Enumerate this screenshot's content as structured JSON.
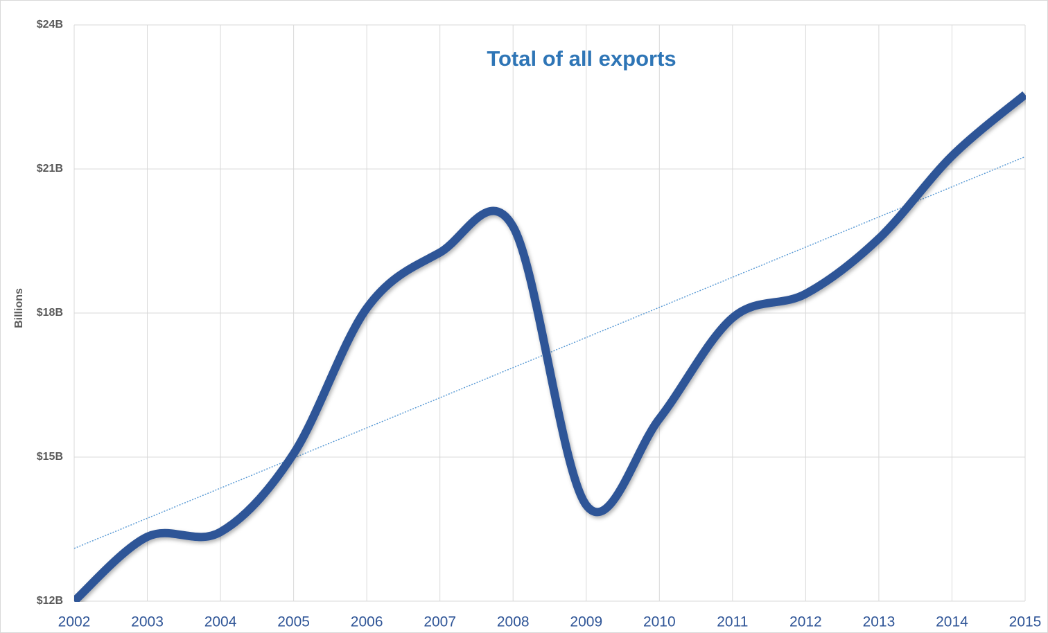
{
  "chart_data": {
    "type": "line",
    "title": "Total of all exports",
    "ylabel": "Billions",
    "x": [
      2002,
      2003,
      2004,
      2005,
      2006,
      2007,
      2008,
      2009,
      2010,
      2011,
      2012,
      2013,
      2014,
      2015
    ],
    "values": [
      12.0,
      13.34,
      13.44,
      15.07,
      18.1,
      19.26,
      19.8,
      14.0,
      15.8,
      17.9,
      18.4,
      19.55,
      21.27,
      22.55
    ],
    "color": "#2f5597",
    "trendline": true,
    "trendline_color": "#5b9bd5",
    "xlim": [
      2002,
      2015
    ],
    "xticks": [
      2002,
      2003,
      2004,
      2005,
      2006,
      2007,
      2008,
      2009,
      2010,
      2011,
      2012,
      2013,
      2014,
      2015
    ],
    "ylim": [
      12,
      24
    ],
    "yticks": [
      {
        "value": 12,
        "label": "$12B"
      },
      {
        "value": 15,
        "label": "$15B"
      },
      {
        "value": 18,
        "label": "$18B"
      },
      {
        "value": 21,
        "label": "$21B"
      },
      {
        "value": 24,
        "label": "$24B"
      }
    ],
    "grid": true
  }
}
